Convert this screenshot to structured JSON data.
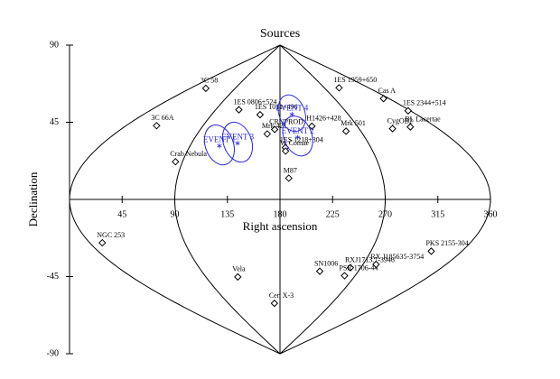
{
  "chart_data": {
    "type": "scatter",
    "projection": "sinusoidal",
    "title": "Sources",
    "x_label": "Right ascension",
    "y_label": "Declination",
    "xlim": [
      0,
      360
    ],
    "ylim": [
      -90,
      90
    ],
    "xticks": [
      45,
      90,
      135,
      180,
      225,
      270,
      315,
      360
    ],
    "yticks": [
      -90,
      -45,
      45,
      90
    ],
    "marker_color": "#000000",
    "event_color": "#2a2ad8",
    "sources": [
      {
        "name": "3C 58",
        "ra": 31,
        "dec": 64.8
      },
      {
        "name": "3C 66A",
        "ra": 35.7,
        "dec": 43
      },
      {
        "name": "Crab Nebula",
        "ra": 83.6,
        "dec": 22
      },
      {
        "name": "1ES 0806+524",
        "ra": 122.5,
        "dec": 52.3
      },
      {
        "name": "1ES 1011+496",
        "ra": 153.8,
        "dec": 49.4
      },
      {
        "name": "CRNPROD",
        "ra": 174,
        "dec": 40.8
      },
      {
        "name": "Mrk 421",
        "ra": 166.1,
        "dec": 38.2
      },
      {
        "name": "1ES 1218+304",
        "ra": 185.3,
        "dec": 30.2
      },
      {
        "name": "W Comae",
        "ra": 185.4,
        "dec": 28.2
      },
      {
        "name": "M87",
        "ra": 187.7,
        "dec": 12.4
      },
      {
        "name": "H1426+428",
        "ra": 217.1,
        "dec": 42.7
      },
      {
        "name": "1ES 1959+650",
        "ra": 300,
        "dec": 65.1
      },
      {
        "name": "Cas A",
        "ra": 350.9,
        "dec": 58.8
      },
      {
        "name": "1ES 2344+514",
        "ra": 356.8,
        "dec": 51.7
      },
      {
        "name": "Mrk 501",
        "ra": 253.5,
        "dec": 39.8
      },
      {
        "name": "CygOB2",
        "ra": 308.1,
        "dec": 41.3
      },
      {
        "name": "BL Lacertae",
        "ra": 330.7,
        "dec": 42.3
      },
      {
        "name": "NGC 253",
        "ra": 11.9,
        "dec": -25.3
      },
      {
        "name": "Vela",
        "ra": 128.8,
        "dec": -45.2
      },
      {
        "name": "Cen X-3",
        "ra": 170.3,
        "dec": -60.6
      },
      {
        "name": "SN1006",
        "ra": 225.7,
        "dec": -41.9
      },
      {
        "name": "RXJ1713.7-3946",
        "ra": 258.4,
        "dec": -39.8
      },
      {
        "name": "PSR 1706-44",
        "ra": 257.4,
        "dec": -44.5
      },
      {
        "name": "RX J185635-3754",
        "ra": 284.1,
        "dec": -37.9
      },
      {
        "name": "PKS 2155-304",
        "ra": 329.7,
        "dec": -30.2
      }
    ],
    "events": [
      {
        "name": "EVENT 1",
        "ra": 119,
        "dec": 31.8,
        "radius": 12
      },
      {
        "name": "EVENT 3",
        "ra": 136.5,
        "dec": 33.4,
        "radius": 12
      },
      {
        "name": "EVENT 2",
        "ra": 199,
        "dec": 37,
        "radius": 12
      },
      {
        "name": "EVENT 4",
        "ra": 196,
        "dec": 50.3,
        "radius": 11
      }
    ]
  }
}
